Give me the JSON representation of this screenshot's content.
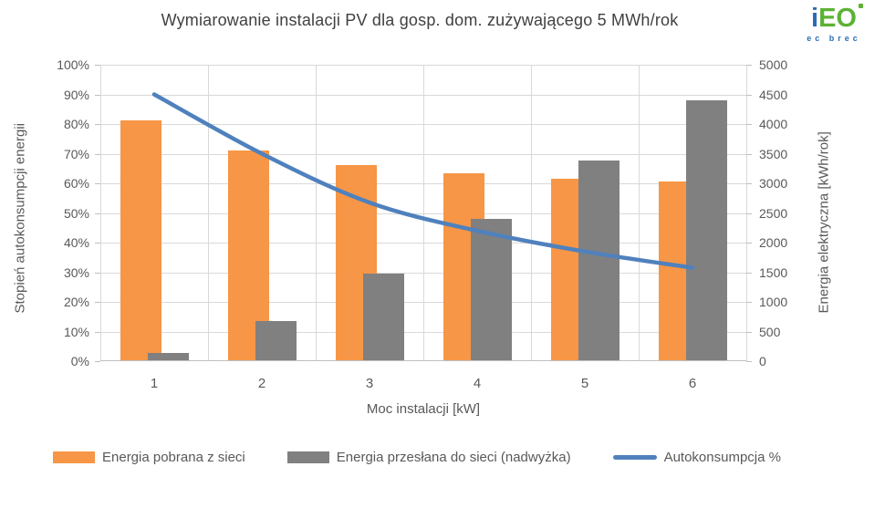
{
  "title": "Wymiarowanie instalacji PV dla gosp. dom. zużywającego 5 MWh/rok",
  "logo": {
    "part_i": "i",
    "part_eo": "EO",
    "subtitle": "ec brec"
  },
  "colors": {
    "bar_pobrana": "#F79646",
    "bar_przeslana": "#808080",
    "line_autokonsumpcja": "#4F81BD",
    "gridline": "#D9D9D9",
    "axis_text": "#595959",
    "title_text": "#404040",
    "logo_green": "#5CB234",
    "logo_blue": "#2B6CB4"
  },
  "chart_data": {
    "type": "combo_bar_line",
    "title": "Wymiarowanie instalacji PV dla gosp. dom. zużywającego 5 MWh/rok",
    "categories": [
      "1",
      "2",
      "3",
      "4",
      "5",
      "6"
    ],
    "series": [
      {
        "name": "Energia pobrana z sieci",
        "type": "bar",
        "axis": "right",
        "unit": "kWh/rok",
        "color": "#F79646",
        "values": [
          4050,
          3540,
          3290,
          3150,
          3060,
          3020
        ]
      },
      {
        "name": "Energia przesłana do sieci (nadwyżka)",
        "type": "bar",
        "axis": "right",
        "unit": "kWh/rok",
        "color": "#808080",
        "values": [
          120,
          660,
          1460,
          2390,
          3370,
          4380
        ]
      },
      {
        "name": "Autokonsumpcja %",
        "type": "line",
        "axis": "left",
        "unit": "%",
        "color": "#4F81BD",
        "values": [
          90,
          70,
          53.5,
          44,
          37,
          31.5
        ]
      }
    ],
    "left_axis": {
      "title": "Stopień autokonsumpcji energii",
      "min": 0,
      "max": 100,
      "tick_labels": [
        "0%",
        "10%",
        "20%",
        "30%",
        "40%",
        "50%",
        "60%",
        "70%",
        "80%",
        "90%",
        "100%"
      ]
    },
    "right_axis": {
      "title": "Energia elektryczna [kWh/rok]",
      "min": 0,
      "max": 5000,
      "tick_labels": [
        "0",
        "500",
        "1000",
        "1500",
        "2000",
        "2500",
        "3000",
        "3500",
        "4000",
        "4500",
        "5000"
      ]
    },
    "x_axis": {
      "title": "Moc instalacji [kW]",
      "labels": [
        "1",
        "2",
        "3",
        "4",
        "5",
        "6"
      ]
    },
    "grid": true,
    "legend_position": "bottom",
    "legend_items": [
      "Energia pobrana z sieci",
      "Energia przesłana do sieci (nadwyżka)",
      "Autokonsumpcja %"
    ]
  }
}
